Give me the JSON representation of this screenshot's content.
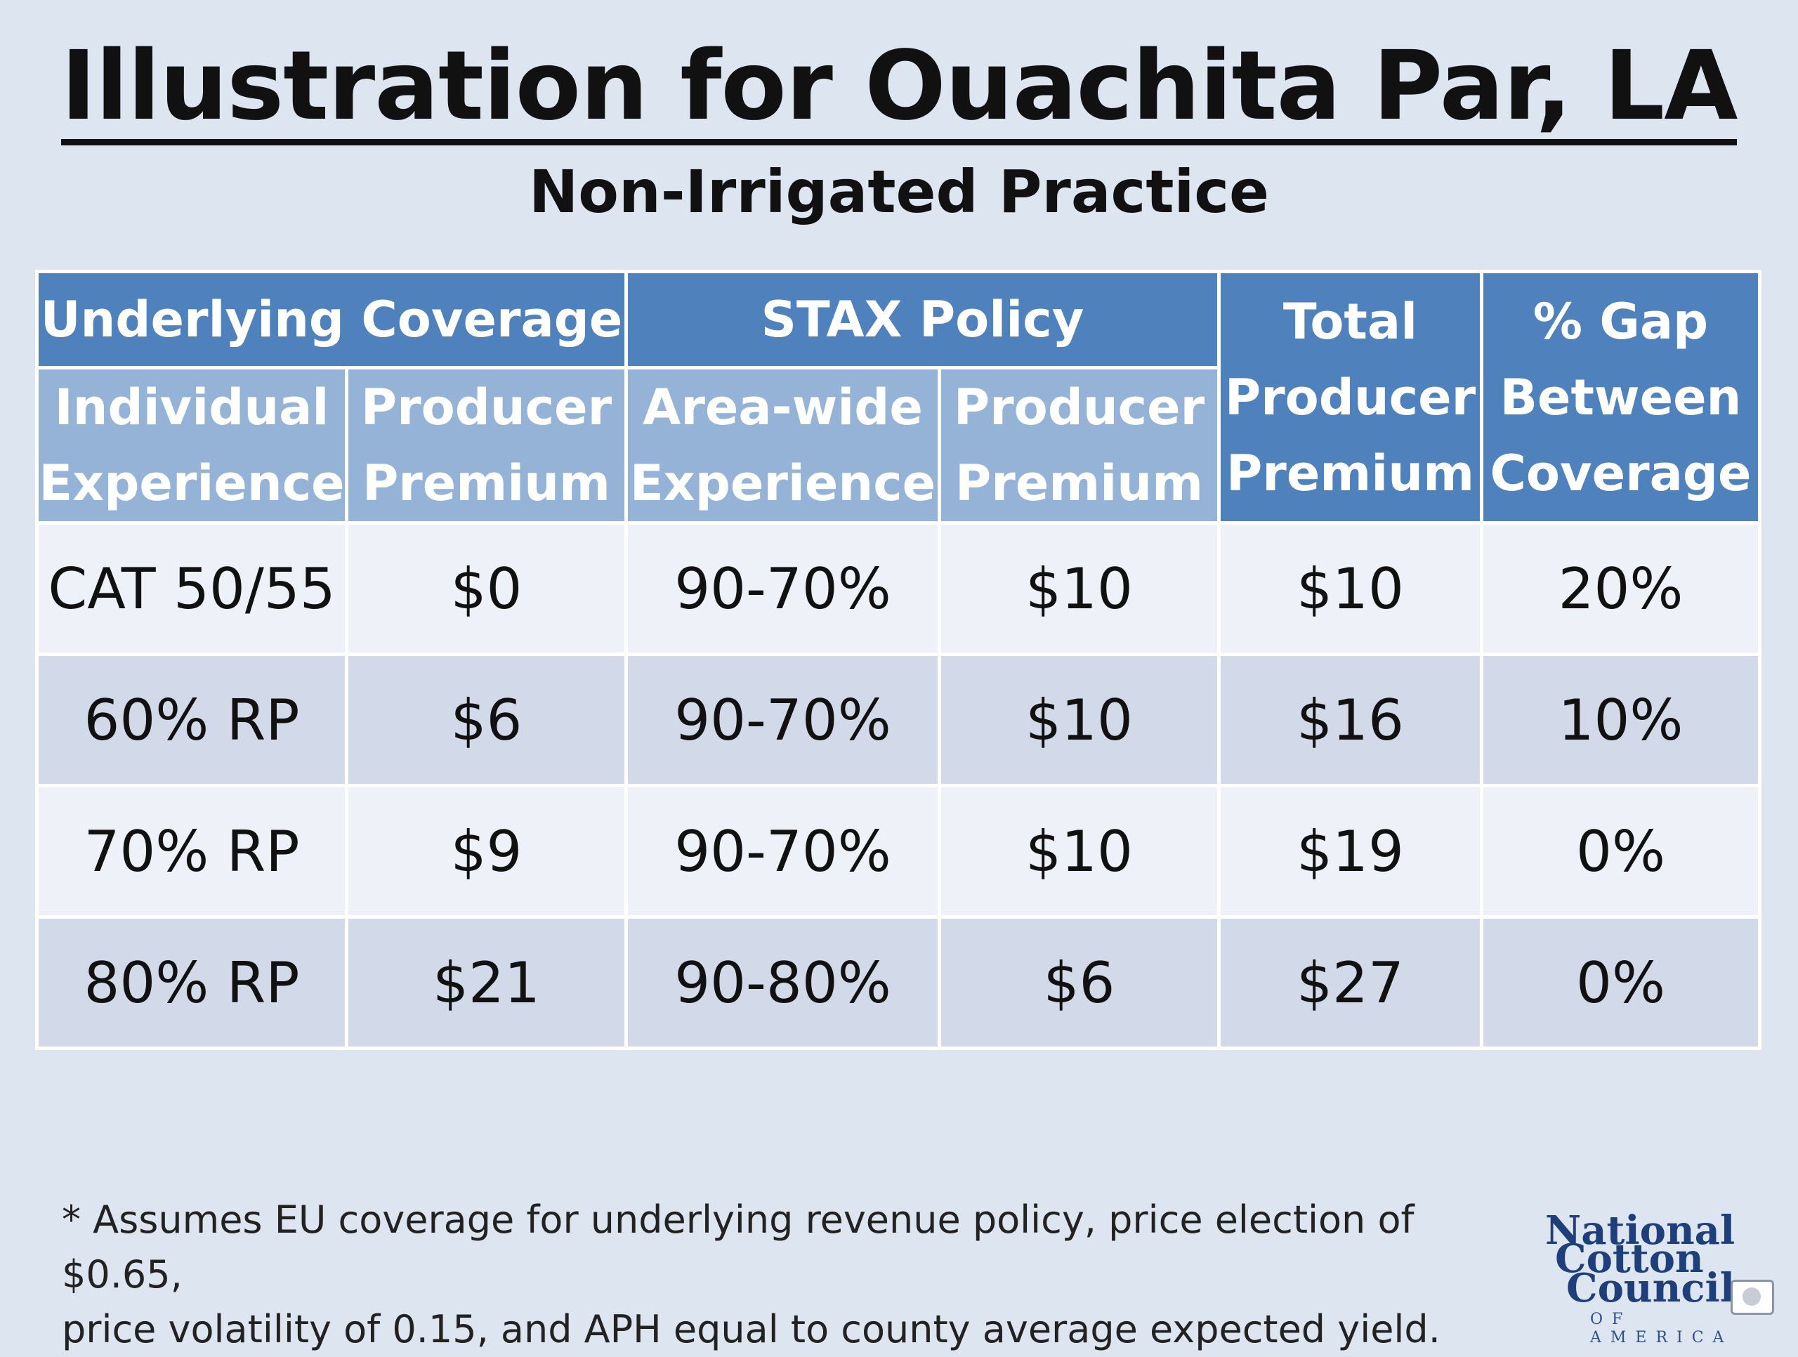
{
  "title": "Illustration for Ouachita Par, LA",
  "subtitle": "Non-Irrigated Practice",
  "table": {
    "group_headers": {
      "underlying": "Underlying Coverage",
      "stax": "STAX Policy",
      "total": [
        "Total",
        "Producer",
        "Premium"
      ],
      "gap": [
        "% Gap",
        "Between",
        "Coverage"
      ]
    },
    "sub_headers": {
      "individual": [
        "Individual",
        "Experience"
      ],
      "under_premium": [
        "Producer",
        "Premium"
      ],
      "areawide": [
        "Area-wide",
        "Experience"
      ],
      "stax_premium": [
        "Producer",
        "Premium"
      ]
    },
    "rows": [
      [
        "CAT 50/55",
        "$0",
        "90-70%",
        "$10",
        "$10",
        "20%"
      ],
      [
        "60% RP",
        "$6",
        "90-70%",
        "$10",
        "$16",
        "10%"
      ],
      [
        "70% RP",
        "$9",
        "90-70%",
        "$10",
        "$19",
        "0%"
      ],
      [
        "80% RP",
        "$21",
        "90-80%",
        "$6",
        "$27",
        "0%"
      ]
    ]
  },
  "footnote": {
    "line1": "* Assumes EU coverage for underlying revenue policy, price election of $0.65,",
    "line2": "price volatility of 0.15, and APH equal to county average expected yield."
  },
  "logo": {
    "line1": "National",
    "line2": "Cotton",
    "line3": "Council",
    "line4": "OF AMERICA"
  },
  "colors": {
    "header_dark": "#4f81bd",
    "header_light": "#95b3d7",
    "row_light": "#eef1f7",
    "row_dark": "#d2daea",
    "background": "#dde6f0"
  }
}
